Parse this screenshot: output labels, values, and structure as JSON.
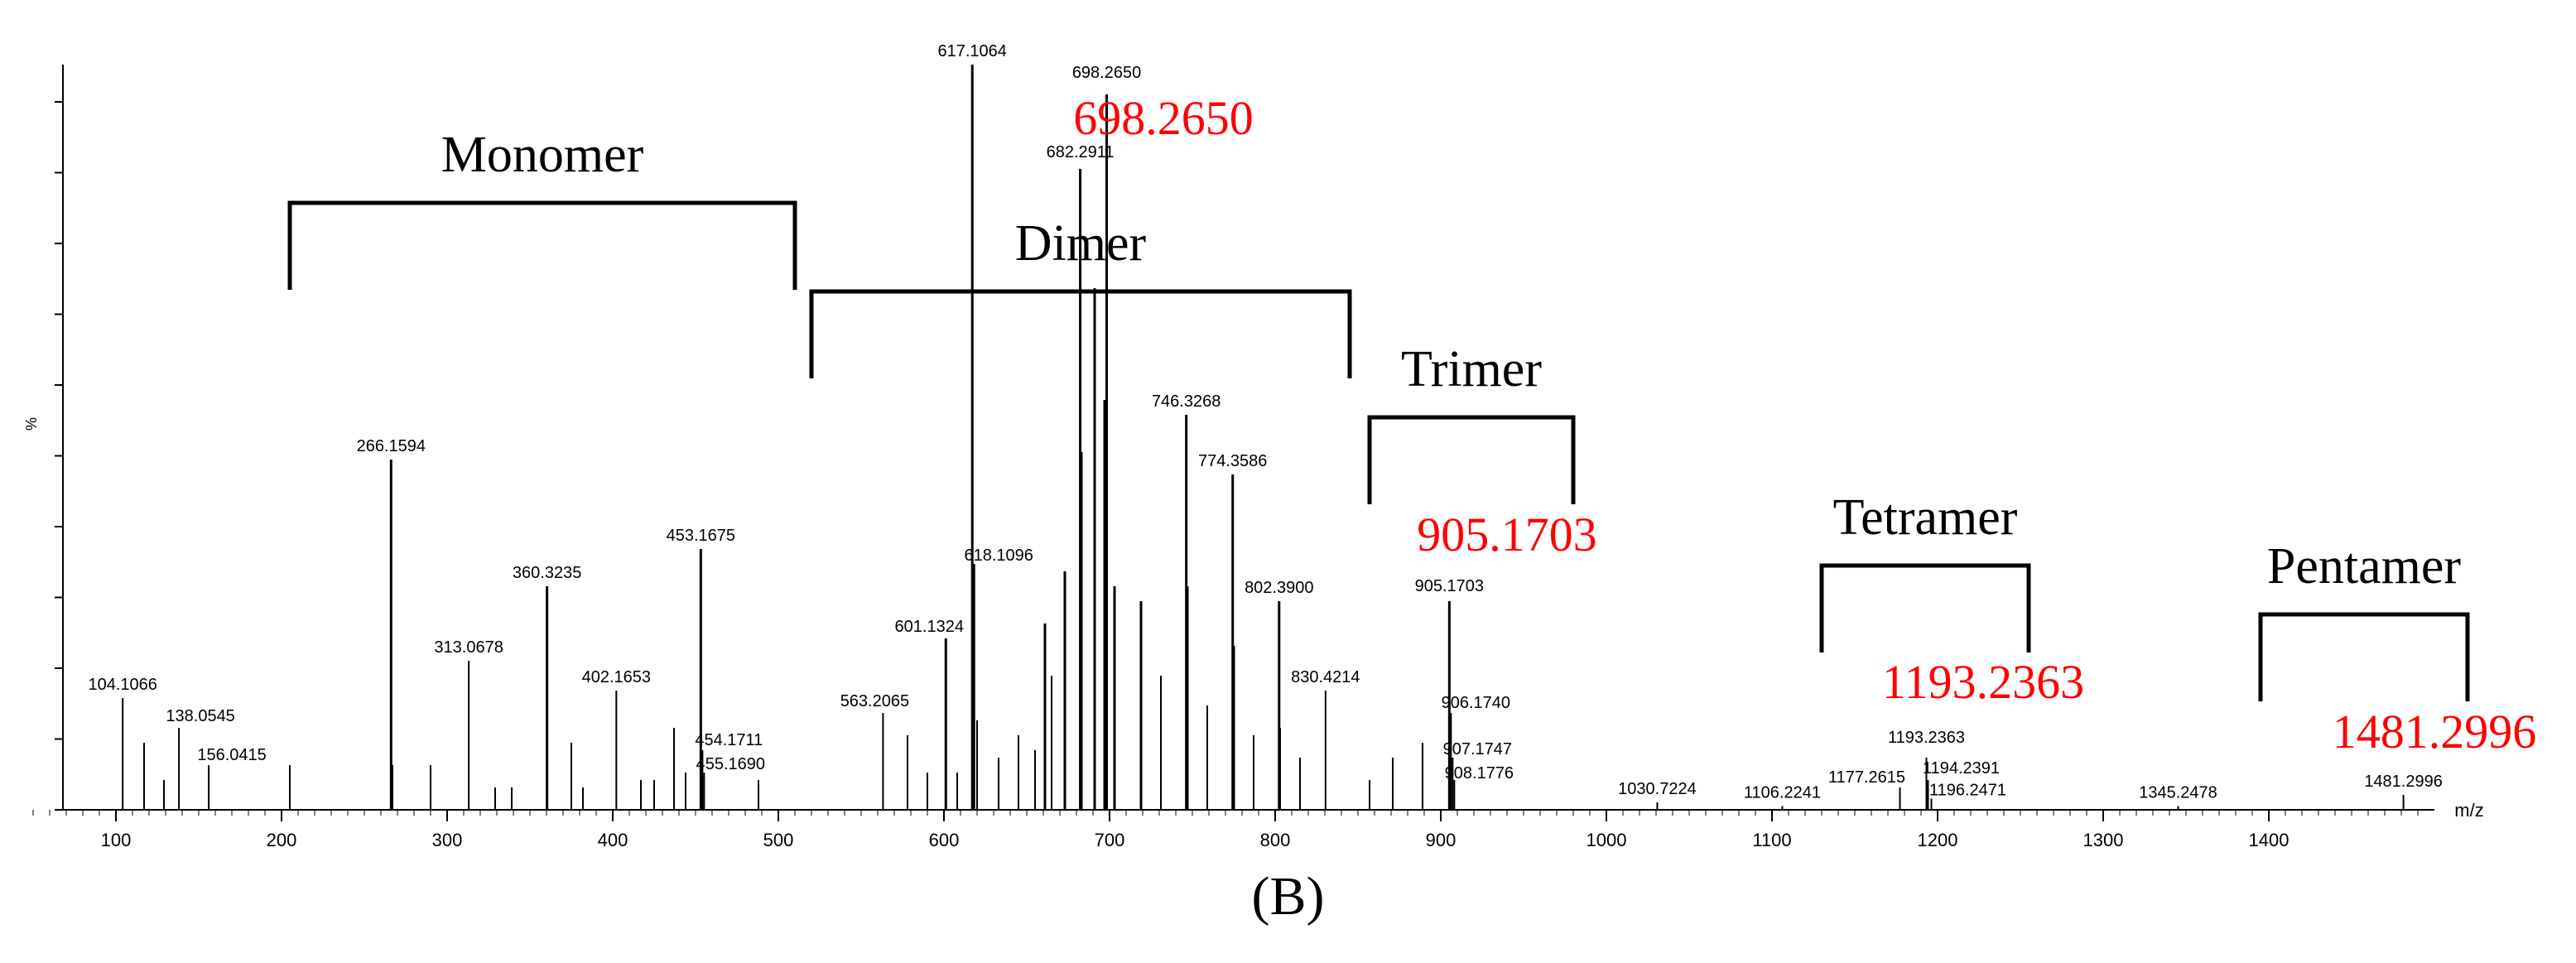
{
  "chart_data": {
    "type": "bar",
    "subtype": "mass-spectrum",
    "xlabel": "m/z",
    "ylabel": "%",
    "xlim": [
      50,
      1500
    ],
    "ylim": [
      0,
      100
    ],
    "x_ticks": [
      100,
      200,
      300,
      400,
      500,
      600,
      700,
      800,
      900,
      1000,
      1100,
      1200,
      1300,
      1400
    ],
    "peaks": [
      {
        "mz": 617.1064,
        "intensity": 100,
        "label": "617.1064"
      },
      {
        "mz": 698.265,
        "intensity": 96,
        "label": "698.2650"
      },
      {
        "mz": 682.2911,
        "intensity": 86,
        "label": "682.2911"
      },
      {
        "mz": 746.3268,
        "intensity": 53,
        "label": "746.3268"
      },
      {
        "mz": 774.3586,
        "intensity": 45,
        "label": "774.3586"
      },
      {
        "mz": 266.1594,
        "intensity": 47,
        "label": "266.1594"
      },
      {
        "mz": 453.1675,
        "intensity": 35,
        "label": "453.1675"
      },
      {
        "mz": 618.1096,
        "intensity": 33,
        "label": "618.1096"
      },
      {
        "mz": 360.3235,
        "intensity": 30,
        "label": "360.3235"
      },
      {
        "mz": 802.39,
        "intensity": 28,
        "label": "802.3900"
      },
      {
        "mz": 905.1703,
        "intensity": 28,
        "label": "905.1703"
      },
      {
        "mz": 601.1324,
        "intensity": 23,
        "label": "601.1324"
      },
      {
        "mz": 313.0678,
        "intensity": 20,
        "label": "313.0678"
      },
      {
        "mz": 830.4214,
        "intensity": 16,
        "label": "830.4214"
      },
      {
        "mz": 402.1653,
        "intensity": 16,
        "label": "402.1653"
      },
      {
        "mz": 104.1066,
        "intensity": 15,
        "label": "104.1066"
      },
      {
        "mz": 906.174,
        "intensity": 13,
        "label": "906.1740"
      },
      {
        "mz": 563.2065,
        "intensity": 13,
        "label": "563.2065"
      },
      {
        "mz": 138.0545,
        "intensity": 11,
        "label": "138.0545"
      },
      {
        "mz": 454.1711,
        "intensity": 8,
        "label": "454.1711"
      },
      {
        "mz": 907.1747,
        "intensity": 7,
        "label": "907.1747"
      },
      {
        "mz": 455.169,
        "intensity": 5,
        "label": "455.1690"
      },
      {
        "mz": 156.0415,
        "intensity": 6,
        "label": "156.0415"
      },
      {
        "mz": 908.1776,
        "intensity": 4,
        "label": "908.1776"
      },
      {
        "mz": 1193.2363,
        "intensity": 7,
        "label": "1193.2363"
      },
      {
        "mz": 1194.2391,
        "intensity": 4,
        "label": "1194.2391"
      },
      {
        "mz": 1177.2615,
        "intensity": 3,
        "label": "1177.2615"
      },
      {
        "mz": 1196.2471,
        "intensity": 1.5,
        "label": "1196.2471"
      },
      {
        "mz": 1030.7224,
        "intensity": 1,
        "label": "1030.7224"
      },
      {
        "mz": 1106.2241,
        "intensity": 0.5,
        "label": "1106.2241"
      },
      {
        "mz": 1345.2478,
        "intensity": 0.5,
        "label": "1345.2478"
      },
      {
        "mz": 1481.2996,
        "intensity": 2,
        "label": "1481.2996"
      },
      {
        "mz": 691,
        "intensity": 70,
        "label": ""
      },
      {
        "mz": 697,
        "intensity": 55,
        "label": ""
      },
      {
        "mz": 703,
        "intensity": 30,
        "label": ""
      },
      {
        "mz": 683,
        "intensity": 48,
        "label": ""
      },
      {
        "mz": 673,
        "intensity": 32,
        "label": ""
      },
      {
        "mz": 661,
        "intensity": 25,
        "label": ""
      },
      {
        "mz": 665,
        "intensity": 18,
        "label": ""
      },
      {
        "mz": 719,
        "intensity": 28,
        "label": ""
      },
      {
        "mz": 731,
        "intensity": 18,
        "label": ""
      },
      {
        "mz": 747,
        "intensity": 30,
        "label": ""
      },
      {
        "mz": 759,
        "intensity": 14,
        "label": ""
      },
      {
        "mz": 775,
        "intensity": 22,
        "label": ""
      },
      {
        "mz": 787,
        "intensity": 10,
        "label": ""
      },
      {
        "mz": 803,
        "intensity": 11,
        "label": ""
      },
      {
        "mz": 815,
        "intensity": 7,
        "label": ""
      },
      {
        "mz": 645,
        "intensity": 10,
        "label": ""
      },
      {
        "mz": 655,
        "intensity": 8,
        "label": ""
      },
      {
        "mz": 633,
        "intensity": 7,
        "label": ""
      },
      {
        "mz": 578,
        "intensity": 10,
        "label": ""
      },
      {
        "mz": 620,
        "intensity": 12,
        "label": ""
      },
      {
        "mz": 608,
        "intensity": 5,
        "label": ""
      },
      {
        "mz": 590,
        "intensity": 5,
        "label": ""
      },
      {
        "mz": 205,
        "intensity": 6,
        "label": ""
      },
      {
        "mz": 117,
        "intensity": 9,
        "label": ""
      },
      {
        "mz": 129,
        "intensity": 4,
        "label": ""
      },
      {
        "mz": 267,
        "intensity": 6,
        "label": ""
      },
      {
        "mz": 290,
        "intensity": 6,
        "label": ""
      },
      {
        "mz": 329,
        "intensity": 3,
        "label": ""
      },
      {
        "mz": 339,
        "intensity": 3,
        "label": ""
      },
      {
        "mz": 375,
        "intensity": 9,
        "label": ""
      },
      {
        "mz": 382,
        "intensity": 3,
        "label": ""
      },
      {
        "mz": 417,
        "intensity": 4,
        "label": ""
      },
      {
        "mz": 425,
        "intensity": 4,
        "label": ""
      },
      {
        "mz": 437,
        "intensity": 11,
        "label": ""
      },
      {
        "mz": 444,
        "intensity": 5,
        "label": ""
      },
      {
        "mz": 488,
        "intensity": 4,
        "label": ""
      },
      {
        "mz": 871,
        "intensity": 7,
        "label": ""
      },
      {
        "mz": 889,
        "intensity": 9,
        "label": ""
      },
      {
        "mz": 857,
        "intensity": 4,
        "label": ""
      }
    ],
    "oligomer_groups": [
      {
        "label": "Monomer",
        "x_range": [
          205,
          510
        ],
        "highlight": ""
      },
      {
        "label": "Dimer",
        "x_range": [
          520,
          845
        ],
        "highlight": "698.2650"
      },
      {
        "label": "Trimer",
        "x_range": [
          857,
          980
        ],
        "highlight": "905.1703"
      },
      {
        "label": "Tetramer",
        "x_range": [
          1130,
          1255
        ],
        "highlight": "1193.2363"
      },
      {
        "label": "Pentamer",
        "x_range": [
          1395,
          1520
        ],
        "highlight": "1481.2996"
      }
    ],
    "highlight_color": "#ff0000",
    "line_color": "#000000"
  },
  "panel_label": "(B)"
}
